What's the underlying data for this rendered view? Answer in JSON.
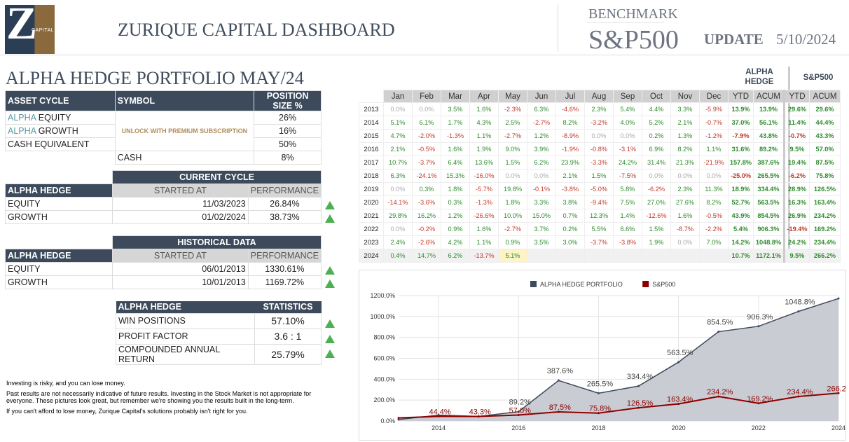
{
  "header": {
    "logo_letter": "Z",
    "logo_text": "CAPITAL",
    "title": "ZURIQUE CAPITAL DASHBOARD",
    "benchmark_label": "BENCHMARK",
    "benchmark_value": "S&P500",
    "update_label": "UPDATE",
    "update_date": "5/10/2024"
  },
  "portfolio_title": "ALPHA HEDGE PORTFOLIO MAY/24",
  "allocation": {
    "headers": [
      "ASSET CYCLE",
      "SYMBOL",
      "POSITION SIZE %"
    ],
    "rows": [
      {
        "prefix": "ALPHA",
        "name": " EQUITY",
        "size": "26%"
      },
      {
        "prefix": "ALPHA",
        "name": " GROWTH",
        "size": "16%"
      },
      {
        "prefix": "",
        "name": "CASH EQUIVALENT",
        "size": "50%"
      }
    ],
    "unlock_text": "UNLOCK WITH PREMIUM SUBSCRIPTION",
    "cash_label": "CASH",
    "cash_size": "8%"
  },
  "current_cycle": {
    "title": "CURRENT CYCLE",
    "col0": "ALPHA HEDGE",
    "col1": "STARTED AT",
    "col2": "PERFORMANCE",
    "rows": [
      {
        "name": "EQUITY",
        "date": "11/03/2023",
        "perf": "26.84%"
      },
      {
        "name": "GROWTH",
        "date": "01/02/2024",
        "perf": "38.73%"
      }
    ]
  },
  "historical": {
    "title": "HISTORICAL DATA",
    "col0": "ALPHA HEDGE",
    "col1": "STARTED AT",
    "col2": "PERFORMANCE",
    "rows": [
      {
        "name": "EQUITY",
        "date": "06/01/2013",
        "perf": "1330.61%"
      },
      {
        "name": "GROWTH",
        "date": "10/01/2013",
        "perf": "1169.72%"
      }
    ]
  },
  "statistics": {
    "col0": "ALPHA HEDGE",
    "col1": "STATISTICS",
    "rows": [
      {
        "name": "WIN POSITIONS",
        "value": "57.10%"
      },
      {
        "name": "PROFIT FACTOR",
        "value": "3.6 : 1"
      },
      {
        "name": "COMPOUNDED ANNUAL RETURN",
        "value": "25.79%"
      }
    ]
  },
  "disclaimer": [
    "Investing is risky, and you can lose money.",
    "Past results are not necessarily indicative of future results. Investing in the Stock Market is not appropriate for everyone. These pictures look great, but remember we're showing you the results built in the long-term.",
    "If you can't afford to lose money, Zurique Capital's solutions probably isn't right for you."
  ],
  "monthly": {
    "alpha_header": "ALPHA HEDGE",
    "sp_header": "S&P500",
    "months": [
      "Jan",
      "Feb",
      "Mar",
      "Apr",
      "May",
      "Jun",
      "Jul",
      "Aug",
      "Sep",
      "Oct",
      "Nov",
      "Dec"
    ],
    "summary_headers": [
      "YTD",
      "ACUM",
      "YTD",
      "ACUM"
    ],
    "rows": [
      {
        "year": "2013",
        "m": [
          "0.0%",
          "0.0%",
          "3.5%",
          "1.6%",
          "-2.3%",
          "6.3%",
          "-4.6%",
          "2.3%",
          "5.4%",
          "4.4%",
          "3.3%",
          "-5.9%"
        ],
        "s": [
          "13.9%",
          "13.9%",
          "29.6%",
          "29.6%"
        ]
      },
      {
        "year": "2014",
        "m": [
          "5.1%",
          "6.1%",
          "1.7%",
          "4.3%",
          "2.5%",
          "-2.7%",
          "8.2%",
          "-3.2%",
          "4.0%",
          "5.2%",
          "2.1%",
          "-0.7%"
        ],
        "s": [
          "37.0%",
          "56.1%",
          "11.4%",
          "44.4%"
        ]
      },
      {
        "year": "2015",
        "m": [
          "4.7%",
          "-2.0%",
          "-1.3%",
          "1.1%",
          "-2.7%",
          "1.2%",
          "-8.9%",
          "0.0%",
          "0.0%",
          "0.2%",
          "1.3%",
          "-1.2%"
        ],
        "s": [
          "-7.9%",
          "43.8%",
          "-0.7%",
          "43.3%"
        ]
      },
      {
        "year": "2016",
        "m": [
          "2.1%",
          "-0.5%",
          "1.6%",
          "1.9%",
          "9.0%",
          "3.9%",
          "-1.9%",
          "-0.8%",
          "-3.1%",
          "6.9%",
          "8.2%",
          "1.1%"
        ],
        "s": [
          "31.6%",
          "89.2%",
          "9.5%",
          "57.0%"
        ]
      },
      {
        "year": "2017",
        "m": [
          "10.7%",
          "-3.7%",
          "6.4%",
          "13.6%",
          "1.5%",
          "6.2%",
          "23.9%",
          "-3.3%",
          "24.2%",
          "31.4%",
          "21.3%",
          "-21.9%"
        ],
        "s": [
          "157.8%",
          "387.6%",
          "19.4%",
          "87.5%"
        ]
      },
      {
        "year": "2018",
        "m": [
          "6.3%",
          "-24.1%",
          "15.3%",
          "-16.0%",
          "0.0%",
          "0.0%",
          "2.1%",
          "1.5%",
          "-7.5%",
          "0.0%",
          "0.0%",
          "0.0%"
        ],
        "s": [
          "-25.0%",
          "265.5%",
          "-6.2%",
          "75.8%"
        ]
      },
      {
        "year": "2019",
        "m": [
          "0.0%",
          "0.3%",
          "1.8%",
          "-5.7%",
          "19.8%",
          "-0.1%",
          "-3.8%",
          "-5.0%",
          "5.8%",
          "-6.2%",
          "2.3%",
          "11.3%"
        ],
        "s": [
          "18.9%",
          "334.4%",
          "28.9%",
          "126.5%"
        ]
      },
      {
        "year": "2020",
        "m": [
          "-14.1%",
          "-3.6%",
          "0.3%",
          "-1.3%",
          "1.8%",
          "3.3%",
          "3.8%",
          "-9.4%",
          "7.5%",
          "27.0%",
          "27.6%",
          "8.2%"
        ],
        "s": [
          "52.7%",
          "563.5%",
          "16.3%",
          "163.4%"
        ]
      },
      {
        "year": "2021",
        "m": [
          "29.8%",
          "16.2%",
          "1.2%",
          "-26.6%",
          "10.0%",
          "15.0%",
          "0.7%",
          "12.3%",
          "1.4%",
          "-12.6%",
          "1.6%",
          "-0.5%"
        ],
        "s": [
          "43.9%",
          "854.5%",
          "26.9%",
          "234.2%"
        ]
      },
      {
        "year": "2022",
        "m": [
          "0.0%",
          "-0.2%",
          "0.9%",
          "1.6%",
          "-2.7%",
          "3.7%",
          "0.2%",
          "5.5%",
          "6.6%",
          "1.5%",
          "-8.7%",
          "-2.2%"
        ],
        "s": [
          "5.4%",
          "906.3%",
          "-19.4%",
          "169.2%"
        ]
      },
      {
        "year": "2023",
        "m": [
          "2.4%",
          "-2.6%",
          "4.2%",
          "1.1%",
          "0.9%",
          "3.5%",
          "3.0%",
          "-3.7%",
          "-3.8%",
          "1.9%",
          "0.0%",
          "7.0%"
        ],
        "s": [
          "14.2%",
          "1048.8%",
          "24.2%",
          "234.4%"
        ]
      },
      {
        "year": "2024",
        "m": [
          "0.4%",
          "14.7%",
          "6.2%",
          "-13.7%",
          "5.1%",
          "",
          "",
          "",
          "",
          "",
          "",
          ""
        ],
        "s": [
          "10.7%",
          "1172.1%",
          "9.5%",
          "266.2%"
        ]
      }
    ]
  },
  "chart_data": {
    "type": "area",
    "title": "",
    "xlabel": "",
    "ylabel": "",
    "x": [
      2013,
      2014,
      2015,
      2016,
      2017,
      2018,
      2019,
      2020,
      2021,
      2022,
      2023,
      2024
    ],
    "xticks": [
      "2014",
      "2016",
      "2018",
      "2020",
      "2022",
      "2024"
    ],
    "yticks": [
      "0.0%",
      "200.0%",
      "400.0%",
      "600.0%",
      "800.0%",
      "1000.0%",
      "1200.0%"
    ],
    "ylim": [
      0,
      1200
    ],
    "legend_position": "top-center",
    "grid": true,
    "series": [
      {
        "name": "ALPHA HEDGE PORTFOLIO",
        "color": "#3c4a5c",
        "values": [
          13.9,
          56.1,
          43.8,
          89.2,
          387.6,
          265.5,
          334.4,
          563.5,
          854.5,
          906.3,
          1048.8,
          1172.1
        ],
        "labels": [
          "13.9%",
          "56.1%",
          "43.8%",
          "89.2%",
          "387.6%",
          "265.5%",
          "334.4%",
          "563.5%",
          "854.5%",
          "906.3%",
          "1048.8%",
          ""
        ]
      },
      {
        "name": "S&P500",
        "color": "#8b0000",
        "values": [
          29.6,
          44.4,
          43.3,
          57.0,
          87.5,
          75.8,
          126.5,
          163.4,
          234.2,
          169.2,
          234.4,
          266.2
        ],
        "labels": [
          "",
          "44.4%",
          "43.3%",
          "57.0%",
          "87.5%",
          "75.8%",
          "126.5%",
          "163.4%",
          "234.2%",
          "169.2%",
          "234.4%",
          "266.2%"
        ]
      }
    ]
  }
}
